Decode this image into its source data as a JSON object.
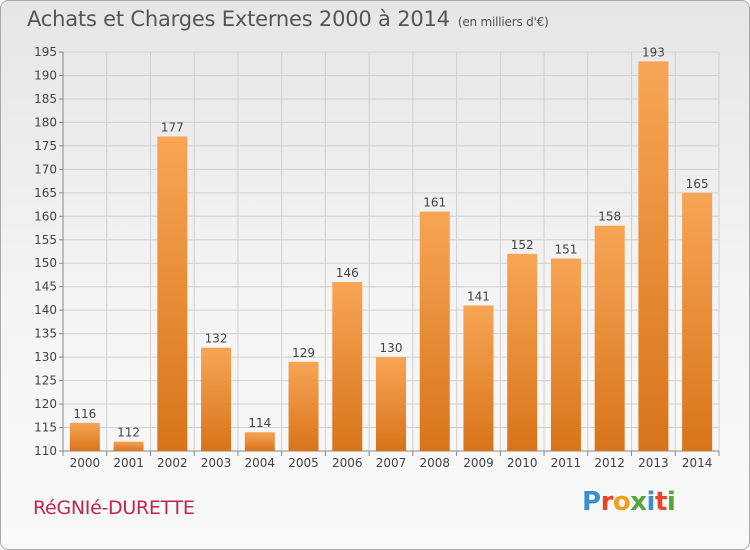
{
  "header": {
    "title": "Achats et Charges Externes 2000 à 2014",
    "subtitle": "(en milliers d'€)"
  },
  "footer": {
    "commune": "RéGNIé-DURETTE",
    "logo_letters": [
      "P",
      "r",
      "o",
      "x",
      "i",
      "t",
      "i"
    ],
    "logo_colors": [
      "#3a8fd1",
      "#e8442c",
      "#f0a01e",
      "#52a63a",
      "#3a8fd1",
      "#e8442c",
      "#52a63a"
    ]
  },
  "chart_data": {
    "type": "bar",
    "categories": [
      "2000",
      "2001",
      "2002",
      "2003",
      "2004",
      "2005",
      "2006",
      "2007",
      "2008",
      "2009",
      "2010",
      "2011",
      "2012",
      "2013",
      "2014"
    ],
    "values": [
      116,
      112,
      177,
      132,
      114,
      129,
      146,
      130,
      161,
      141,
      152,
      151,
      158,
      193,
      165
    ],
    "ylim": [
      110,
      195
    ],
    "yticks": [
      110,
      115,
      120,
      125,
      130,
      135,
      140,
      145,
      150,
      155,
      160,
      165,
      170,
      175,
      180,
      185,
      190,
      195
    ],
    "grid": true,
    "bar_color_light": "#f7a555",
    "bar_color_dark": "#d8741a",
    "title": "Achats et Charges Externes 2000 à 2014",
    "xlabel": "",
    "ylabel": ""
  }
}
